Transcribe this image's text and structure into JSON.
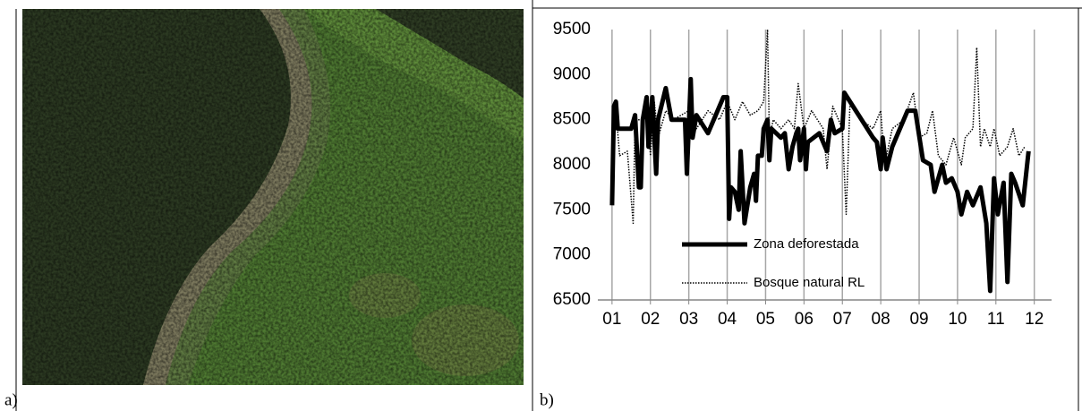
{
  "panels": {
    "a": "a)",
    "b": "b)"
  },
  "chart_data": {
    "type": "line",
    "xlim": [
      0.63,
      12.45
    ],
    "xticks": [
      {
        "value": 1,
        "label": "01"
      },
      {
        "value": 2,
        "label": "02"
      },
      {
        "value": 3,
        "label": "03"
      },
      {
        "value": 4,
        "label": "04"
      },
      {
        "value": 5,
        "label": "05"
      },
      {
        "value": 6,
        "label": "06"
      },
      {
        "value": 7,
        "label": "07"
      },
      {
        "value": 8,
        "label": "08"
      },
      {
        "value": 9,
        "label": "09"
      },
      {
        "value": 10,
        "label": "10"
      },
      {
        "value": 11,
        "label": "11"
      },
      {
        "value": 12,
        "label": "12"
      }
    ],
    "ylim": [
      6500,
      9500
    ],
    "yticks": [
      6500,
      7000,
      7500,
      8000,
      8500,
      9000,
      9500
    ],
    "grid": "x",
    "series": [
      {
        "name": "Zona deforestada",
        "color": "#000000",
        "style": "solid",
        "width": 5,
        "x": [
          1.0,
          1.05,
          1.1,
          1.15,
          1.5,
          1.6,
          1.7,
          1.75,
          1.8,
          1.9,
          1.95,
          2.05,
          2.15,
          2.2,
          2.4,
          2.55,
          2.9,
          2.95,
          3.05,
          3.1,
          3.2,
          3.5,
          3.9,
          4.0,
          4.05,
          4.1,
          4.2,
          4.3,
          4.35,
          4.45,
          4.6,
          4.7,
          4.75,
          4.8,
          4.9,
          4.95,
          5.05,
          5.1,
          5.15,
          5.4,
          5.5,
          5.6,
          5.7,
          5.8,
          5.85,
          5.9,
          6.0,
          6.05,
          6.1,
          6.4,
          6.6,
          6.7,
          6.8,
          7.0,
          7.05,
          7.5,
          7.8,
          7.9,
          8.0,
          8.05,
          8.15,
          8.3,
          8.7,
          8.9,
          9.1,
          9.3,
          9.4,
          9.6,
          9.7,
          9.85,
          10.0,
          10.1,
          10.25,
          10.4,
          10.6,
          10.75,
          10.85,
          10.95,
          11.05,
          11.2,
          11.3,
          11.4,
          11.5,
          11.7,
          11.85
        ],
        "values": [
          7550,
          8650,
          8700,
          8400,
          8400,
          8550,
          7750,
          7750,
          8500,
          8750,
          8200,
          8750,
          7900,
          8500,
          8850,
          8500,
          8500,
          7900,
          8950,
          8300,
          8550,
          8350,
          8750,
          8750,
          7400,
          7750,
          7700,
          7500,
          8150,
          7350,
          7750,
          7900,
          7600,
          8100,
          8100,
          8400,
          8500,
          8050,
          8400,
          8300,
          8350,
          7950,
          8200,
          8350,
          8400,
          8050,
          8400,
          7950,
          8250,
          8350,
          8150,
          8500,
          8350,
          8400,
          8800,
          8500,
          8300,
          8250,
          7950,
          8300,
          7950,
          8200,
          8600,
          8600,
          8050,
          8000,
          7700,
          8000,
          7800,
          7850,
          7700,
          7450,
          7700,
          7550,
          7750,
          7350,
          6600,
          7850,
          7450,
          7800,
          6700,
          7900,
          7800,
          7550,
          8150
        ]
      },
      {
        "name": "Bosque natural RL",
        "color": "#000000",
        "style": "dotted",
        "width": 1.5,
        "x": [
          1.0,
          1.1,
          1.2,
          1.4,
          1.55,
          1.6,
          1.8,
          1.9,
          2.0,
          2.1,
          2.2,
          2.4,
          2.6,
          3.0,
          3.2,
          3.5,
          3.8,
          4.0,
          4.2,
          4.4,
          4.6,
          4.8,
          4.95,
          5.05,
          5.1,
          5.2,
          5.4,
          5.6,
          5.75,
          5.85,
          6.0,
          6.2,
          6.5,
          6.6,
          6.75,
          7.0,
          7.1,
          7.2,
          7.5,
          7.8,
          8.0,
          8.1,
          8.3,
          8.6,
          8.85,
          9.0,
          9.2,
          9.35,
          9.5,
          9.7,
          9.9,
          10.1,
          10.2,
          10.4,
          10.5,
          10.6,
          10.7,
          10.85,
          10.95,
          11.1,
          11.3,
          11.45,
          11.6,
          11.75
        ],
        "values": [
          8000,
          8600,
          8100,
          8150,
          7350,
          8500,
          8500,
          8700,
          8100,
          8700,
          8300,
          8600,
          8500,
          8600,
          8400,
          8600,
          8500,
          8700,
          8500,
          8700,
          8550,
          8600,
          8700,
          9500,
          8300,
          8500,
          8400,
          8500,
          8400,
          8900,
          8400,
          8600,
          8400,
          7950,
          8650,
          8400,
          7450,
          8700,
          8500,
          8400,
          8600,
          8000,
          8400,
          8500,
          8800,
          8300,
          8350,
          8600,
          8100,
          8000,
          8300,
          8000,
          8300,
          8400,
          9300,
          8200,
          8400,
          8200,
          8400,
          8100,
          8200,
          8400,
          8100,
          8200
        ]
      }
    ]
  }
}
